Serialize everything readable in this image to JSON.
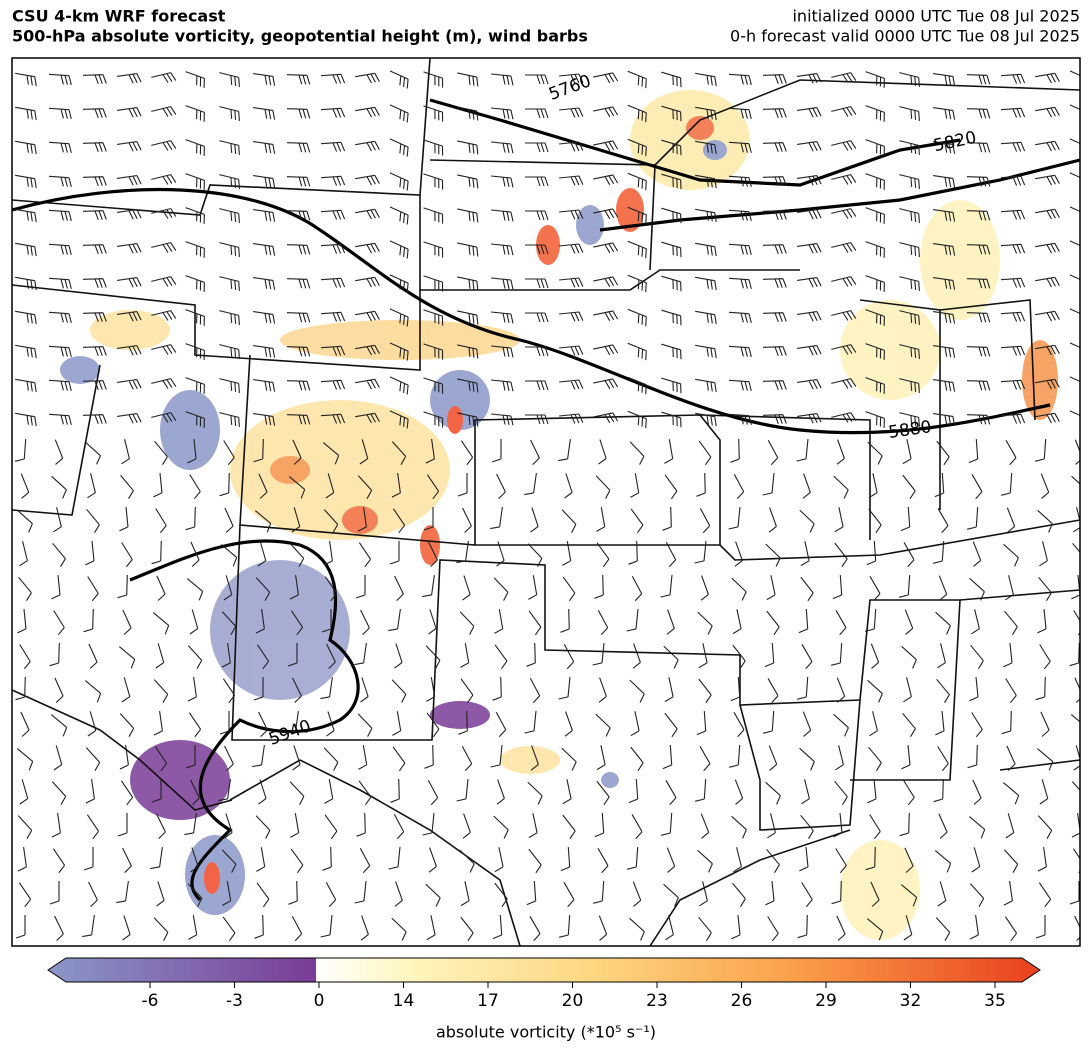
{
  "header": {
    "title": "CSU 4-km WRF forecast",
    "subtitle": "500-hPa absolute vorticity, geopotential height (m), wind barbs",
    "initialized": "initialized 0000 UTC Tue 08 Jul 2025",
    "valid": "0-h forecast valid 0000 UTC Tue 08 Jul 2025"
  },
  "map": {
    "contour_labels": [
      5760,
      5820,
      5880,
      5940
    ]
  },
  "colorbar": {
    "ticks": [
      -6,
      -3,
      0,
      14,
      17,
      20,
      23,
      26,
      29,
      32,
      35
    ],
    "label": "absolute vorticity (*10⁵ s⁻¹)"
  }
}
